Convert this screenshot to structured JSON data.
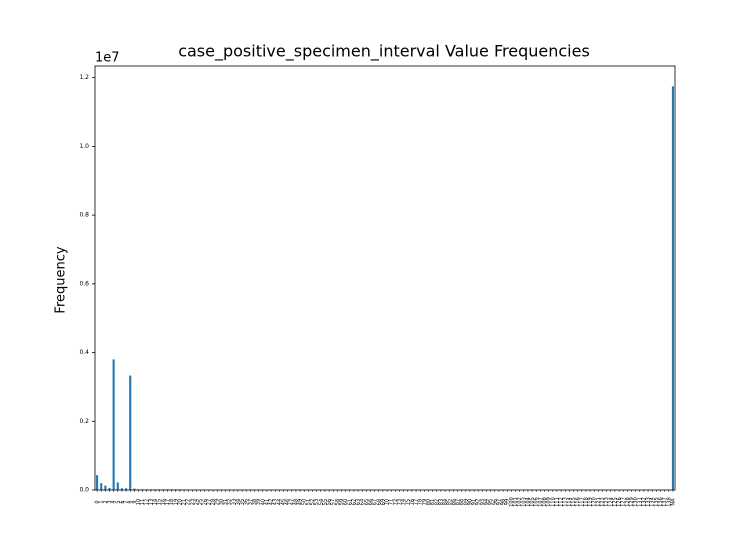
{
  "chart_data": {
    "type": "bar",
    "title": "case_positive_specimen_interval Value Frequencies",
    "ylabel": "Frequency",
    "offset_label": "1e7",
    "color": "#1f77b4",
    "ylim": [
      0,
      1.234
    ],
    "yticks": [
      {
        "value": 0,
        "label": "0.0"
      },
      0.2,
      0.4,
      0.6,
      0.8,
      {
        "value": 1,
        "label": "1.0"
      },
      1.2
    ],
    "categories": [
      "0",
      "1",
      "2",
      "3",
      "4",
      "5",
      "6",
      "7",
      "8",
      "9",
      "10",
      "11",
      "12",
      "13",
      "14",
      "15",
      "16",
      "17",
      "18",
      "19",
      "20",
      "21",
      "22",
      "23",
      "24",
      "25",
      "26",
      "27",
      "28",
      "29",
      "30",
      "31",
      "32",
      "33",
      "34",
      "35",
      "36",
      "37",
      "38",
      "39",
      "40",
      "41",
      "42",
      "43",
      "44",
      "45",
      "46",
      "47",
      "48",
      "49",
      "50",
      "51",
      "52",
      "53",
      "54",
      "55",
      "56",
      "57",
      "58",
      "59",
      "60",
      "61",
      "62",
      "63",
      "64",
      "65",
      "66",
      "67",
      "68",
      "69",
      "70",
      "71",
      "72",
      "73",
      "74",
      "75",
      "76",
      "77",
      "78",
      "79",
      "80",
      "81",
      "82",
      "83",
      "84",
      "85",
      "86",
      "87",
      "88",
      "89",
      "90",
      "91",
      "92",
      "93",
      "94",
      "95",
      "96",
      "97",
      "98",
      "99",
      "100",
      "101",
      "102",
      "103",
      "104",
      "105",
      "106",
      "107",
      "108",
      "109",
      "110",
      "111",
      "112",
      "113",
      "114",
      "115",
      "116",
      "117",
      "118",
      "119",
      "120",
      "121",
      "122",
      "123",
      "124",
      "125",
      "126",
      "127",
      "128",
      "129",
      "130",
      "131",
      "132",
      "133",
      "134",
      "135",
      "136",
      "137",
      "138",
      "NA"
    ],
    "values": [
      0.043,
      0.02,
      0.013,
      0.006,
      0.38,
      0.022,
      0.005,
      0.005,
      0.333,
      0.004,
      0.002,
      0.002,
      0.002,
      0.002,
      0.002,
      0.002,
      0.002,
      0.002,
      0.002,
      0.002,
      0.002,
      0.001,
      0.001,
      0.001,
      0.001,
      0.001,
      0.001,
      0.001,
      0.001,
      0.001,
      0.001,
      0.001,
      0.001,
      0.001,
      0.001,
      0.001,
      0.001,
      0.001,
      0.001,
      0.001,
      0.001,
      0.001,
      0.001,
      0.001,
      0.001,
      0.001,
      0.001,
      0.001,
      0.001,
      0.001,
      0.001,
      0.001,
      0.001,
      0.001,
      0.001,
      0.001,
      0.001,
      0.001,
      0.001,
      0.001,
      0.001,
      0.0005,
      0.0005,
      0.0005,
      0.0005,
      0.0005,
      0.0005,
      0.0005,
      0.0005,
      0.0005,
      0.0005,
      0.0005,
      0.0005,
      0.0005,
      0.0005,
      0.0005,
      0.0005,
      0.0005,
      0.0005,
      0.0005,
      0.0005,
      0.0005,
      0.0005,
      0.0005,
      0.0005,
      0.0005,
      0.0005,
      0.0005,
      0.0005,
      0.0005,
      0.0005,
      0.0005,
      0.0005,
      0.0005,
      0.0005,
      0.0005,
      0.0005,
      0.0005,
      0.0005,
      0.0005,
      0.0005,
      0.0005,
      0.0005,
      0.0005,
      0.0005,
      0.0005,
      0.0005,
      0.0005,
      0.0005,
      0.0005,
      0.0005,
      0.0005,
      0.0005,
      0.0005,
      0.0005,
      0.0005,
      0.0005,
      0.0005,
      0.0005,
      0.0005,
      0.0005,
      0.0005,
      0.0005,
      0.0005,
      0.0005,
      0.0005,
      0.0005,
      0.0005,
      0.0005,
      0.0005,
      0.0005,
      0.0005,
      0.0005,
      0.0005,
      0.0005,
      0.0005,
      0.0005,
      0.0005,
      0.0005,
      1.175
    ]
  }
}
